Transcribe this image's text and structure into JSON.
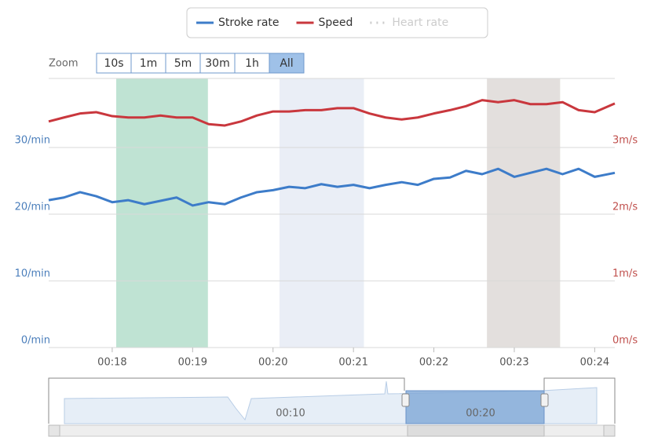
{
  "chart_data": {
    "type": "line",
    "zoom_label": "Zoom",
    "zoom_buttons": [
      "10s",
      "1m",
      "5m",
      "30m",
      "1h",
      "All"
    ],
    "selected_zoom": 5,
    "x": [
      17.21,
      17.4,
      17.6,
      17.8,
      18.0,
      18.2,
      18.4,
      18.6,
      18.8,
      19.0,
      19.2,
      19.4,
      19.6,
      19.8,
      20.0,
      20.2,
      20.4,
      20.6,
      20.8,
      21.0,
      21.2,
      21.4,
      21.6,
      21.8,
      22.0,
      22.2,
      22.4,
      22.6,
      22.8,
      23.0,
      23.2,
      23.4,
      23.6,
      23.8,
      24.0,
      24.25
    ],
    "series": [
      {
        "name": "Stroke rate",
        "color": "#3d7cc9",
        "axis": "y",
        "values": [
          22.1,
          22.5,
          23.3,
          22.7,
          21.8,
          22.1,
          21.5,
          22.0,
          22.5,
          21.3,
          21.8,
          21.5,
          22.5,
          23.3,
          23.6,
          24.1,
          23.9,
          24.5,
          24.1,
          24.4,
          23.9,
          24.4,
          24.8,
          24.4,
          25.3,
          25.5,
          26.5,
          26.0,
          26.8,
          25.6,
          26.2,
          26.8,
          26.0,
          26.8,
          25.6,
          26.2
        ]
      },
      {
        "name": "Speed",
        "color": "#c9373d",
        "axis": "y2",
        "values": [
          3.39,
          3.45,
          3.51,
          3.53,
          3.47,
          3.45,
          3.45,
          3.48,
          3.45,
          3.45,
          3.35,
          3.33,
          3.39,
          3.48,
          3.54,
          3.54,
          3.56,
          3.56,
          3.59,
          3.59,
          3.51,
          3.45,
          3.42,
          3.45,
          3.51,
          3.56,
          3.62,
          3.71,
          3.68,
          3.71,
          3.65,
          3.65,
          3.68,
          3.56,
          3.53,
          3.66
        ]
      },
      {
        "name": "Heart rate",
        "color": "#cccccc",
        "visible": false
      }
    ],
    "plot_bands": [
      {
        "from": 18.05,
        "to": 19.19,
        "color": "#bfe3d3"
      },
      {
        "from": 20.08,
        "to": 21.13,
        "color": "#eaeef6"
      },
      {
        "from": 22.66,
        "to": 23.57,
        "color": "#e3dfdd"
      }
    ],
    "xlim": [
      17.21,
      24.25
    ],
    "xticks": [
      {
        "value": 18,
        "label": "00:18"
      },
      {
        "value": 19,
        "label": "00:19"
      },
      {
        "value": 20,
        "label": "00:20"
      },
      {
        "value": 21,
        "label": "00:21"
      },
      {
        "value": 22,
        "label": "00:22"
      },
      {
        "value": 23,
        "label": "00:23"
      },
      {
        "value": 24,
        "label": "00:24"
      }
    ],
    "ylim": [
      0,
      40
    ],
    "yticks": [
      {
        "value": 0,
        "label": "0/min"
      },
      {
        "value": 10,
        "label": "10/min"
      },
      {
        "value": 20,
        "label": "20/min"
      },
      {
        "value": 30,
        "label": "30/min"
      }
    ],
    "y2lim": [
      0,
      4
    ],
    "y2ticks": [
      {
        "value": 0,
        "label": "0m/s"
      },
      {
        "value": 1,
        "label": "1m/s"
      },
      {
        "value": 2,
        "label": "2m/s"
      },
      {
        "value": 3,
        "label": "3m/s"
      }
    ],
    "grid": true,
    "navigator": {
      "labels": [
        "00:10",
        "00:20"
      ]
    }
  }
}
